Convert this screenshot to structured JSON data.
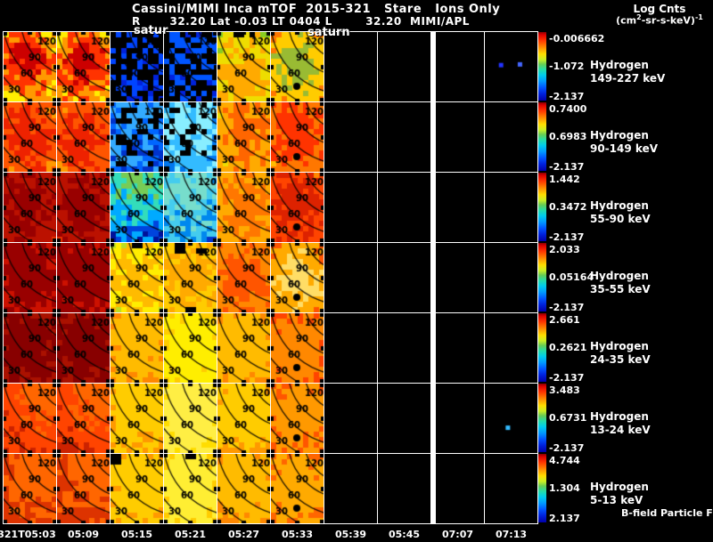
{
  "header": {
    "title": "Cassini/MIMI Inca mTOF  2015-321   Stare   Ions Only",
    "subtitle": "R       32.20 Lat -0.03 LT 0404 L        32.20  MIMI/APL",
    "colorbar_title": "Log Cnts",
    "unit_open": "(cm",
    "unit_sup1": "2",
    "unit_mid": "-sr-s-keV)",
    "unit_sup2": "-1"
  },
  "annotations": {
    "sat_partial": "satur",
    "saturn": "saturn",
    "bfield": "B-field Particle Flow"
  },
  "chart_data": {
    "type": "heatmap",
    "title": "Cassini/MIMI Inca mTOF 2015-321 Stare Ions Only",
    "colorbar_label": "Log Cnts (cm2-sr-s-keV)-1",
    "x_ticks": [
      "321T05:03",
      "05:09",
      "05:15",
      "05:21",
      "05:27",
      "05:33",
      "05:39",
      "05:45",
      "07:07",
      "07:13"
    ],
    "contour_labels": [
      "30",
      "60",
      "90",
      "120"
    ],
    "legend_position": "right",
    "rows": [
      {
        "species": "Hydrogen",
        "energy": "149-227 keV",
        "cb_top": "-0.006662",
        "cb_mid": "-1.072",
        "cb_bot": "-2.137"
      },
      {
        "species": "Hydrogen",
        "energy": "90-149 keV",
        "cb_top": "0.7400",
        "cb_mid": "0.6983",
        "cb_bot": "-2.137"
      },
      {
        "species": "Hydrogen",
        "energy": "55-90 keV",
        "cb_top": "1.442",
        "cb_mid": "0.3472",
        "cb_bot": "-2.137"
      },
      {
        "species": "Hydrogen",
        "energy": "35-55 keV",
        "cb_top": "2.033",
        "cb_mid": "0.05164",
        "cb_bot": "-2.137"
      },
      {
        "species": "Hydrogen",
        "energy": "24-35 keV",
        "cb_top": "2.661",
        "cb_mid": "0.2621",
        "cb_bot": "-2.137"
      },
      {
        "species": "Hydrogen",
        "energy": "13-24 keV",
        "cb_top": "3.483",
        "cb_mid": "0.6731",
        "cb_bot": "-2.137"
      },
      {
        "species": "Hydrogen",
        "energy": "5-13 keV",
        "cb_top": "4.744",
        "cb_mid": "1.304",
        "cb_bot": "2.137"
      }
    ],
    "panels": [
      [
        {
          "g": [
            "#33aa44",
            "#aacc22",
            "#ffee00",
            "#ff9900",
            "#ff3300",
            "#cc0000"
          ],
          "cx": 0.45,
          "cy": 0.42,
          "r": 1.3,
          "j": 0.3
        },
        {
          "g": [
            "#33aa44",
            "#aacc22",
            "#ffee00",
            "#ff9900",
            "#ff3300",
            "#cc0000"
          ],
          "cx": 0.5,
          "cy": 0.45,
          "r": 1.35,
          "j": 0.3
        },
        {
          "g": [
            "#000099",
            "#0022dd",
            "#0044ff"
          ],
          "cx": 0.5,
          "cy": 0.4,
          "r": 3,
          "j": 0.9,
          "s": 0.55
        },
        {
          "g": [
            "#000099",
            "#0022dd",
            "#0055ff"
          ],
          "cx": 0.5,
          "cy": 0.4,
          "r": 3,
          "j": 0.9,
          "s": 0.6
        },
        {
          "g": [
            "#22aa55",
            "#88cc22",
            "#eedd00",
            "#ffaa00"
          ],
          "cx": 0.5,
          "cy": 0.65,
          "r": 1.6,
          "j": 0.4,
          "drop": [
            [
              3,
              0,
              2,
              1
            ],
            [
              6,
              0,
              1,
              1
            ]
          ]
        },
        {
          "g": [
            "#cc2200",
            "#ff7700",
            "#ffcc00",
            "#99bb33"
          ],
          "cx": 0.5,
          "cy": 0.5,
          "r": 1.25,
          "j": 0.3,
          "dot": 1
        },
        {},
        {},
        {},
        {
          "sp": [
            [
              0.3,
              0.47,
              "#2233ff"
            ],
            [
              0.66,
              0.46,
              "#4466ff"
            ]
          ]
        }
      ],
      [
        {
          "g": [
            "#ffcc00",
            "#ff9900",
            "#ff5500",
            "#ee2200"
          ],
          "cx": 0.42,
          "cy": 0.5,
          "r": 1.5,
          "j": 0.35
        },
        {
          "g": [
            "#ffcc00",
            "#ff9900",
            "#ff5500",
            "#ee2200"
          ],
          "cx": 0.5,
          "cy": 0.5,
          "r": 1.4,
          "j": 0.35
        },
        {
          "g": [
            "#000088",
            "#0033cc",
            "#0066ff",
            "#33aaff"
          ],
          "cx": 0.5,
          "cy": 0.2,
          "r": 2.2,
          "j": 0.8,
          "s": 0.3
        },
        {
          "g": [
            "#0033bb",
            "#0077ee",
            "#33bbff",
            "#88eeff"
          ],
          "cx": 0.5,
          "cy": 0.3,
          "r": 1.8,
          "j": 0.6,
          "s": 0.15
        },
        {
          "g": [
            "#88bb33",
            "#eedd00",
            "#ffaa00",
            "#ff6600"
          ],
          "cx": 0.55,
          "cy": 0.45,
          "r": 1.6,
          "j": 0.35
        },
        {
          "g": [
            "#ffee00",
            "#ffbb00",
            "#ff7700",
            "#ff3300"
          ],
          "cx": 0.5,
          "cy": 0.45,
          "r": 1.7,
          "j": 0.3,
          "dot": 1
        },
        {},
        {},
        {},
        {}
      ],
      [
        {
          "g": [
            "#ff6600",
            "#ee3300",
            "#bb1100",
            "#990000"
          ],
          "cx": 0.45,
          "cy": 0.45,
          "r": 1.6,
          "j": 0.3
        },
        {
          "g": [
            "#ff6600",
            "#ee3300",
            "#bb1100",
            "#990000"
          ],
          "cx": 0.5,
          "cy": 0.5,
          "r": 1.6,
          "j": 0.3
        },
        {
          "g": [
            "#001199",
            "#0044dd",
            "#00aaff",
            "#33ddbb",
            "#77cc55"
          ],
          "cx": 0.5,
          "cy": 0.05,
          "r": 1.35,
          "j": 0.4
        },
        {
          "g": [
            "#0033cc",
            "#0088ee",
            "#44ccee",
            "#77ddcc"
          ],
          "cx": 0.5,
          "cy": 0.15,
          "r": 1.6,
          "j": 0.5
        },
        {
          "g": [
            "#aacc22",
            "#eedd00",
            "#ffaa00",
            "#ff7700"
          ],
          "cx": 0.55,
          "cy": 0.5,
          "r": 1.7,
          "j": 0.3
        },
        {
          "g": [
            "#ffcc00",
            "#ff8800",
            "#ff4400",
            "#dd2200"
          ],
          "cx": 0.5,
          "cy": 0.5,
          "r": 1.6,
          "j": 0.3,
          "dot": 1
        },
        {},
        {},
        {},
        {}
      ],
      [
        {
          "g": [
            "#ee4400",
            "#cc1100",
            "#990000"
          ],
          "cx": 0.45,
          "cy": 0.5,
          "r": 1.8,
          "j": 0.35
        },
        {
          "g": [
            "#ee4400",
            "#cc1100",
            "#990000"
          ],
          "cx": 0.5,
          "cy": 0.5,
          "r": 1.8,
          "j": 0.35
        },
        {
          "g": [
            "#55aa33",
            "#bbdd22",
            "#ffee00",
            "#ffbb00"
          ],
          "cx": 0.5,
          "cy": 0.55,
          "r": 1.7,
          "j": 0.4,
          "drop": [
            [
              4,
              0,
              2,
              1
            ]
          ]
        },
        {
          "g": [
            "#88bb22",
            "#eedd00",
            "#ffcc00",
            "#ffaa00"
          ],
          "cx": 0.5,
          "cy": 0.5,
          "r": 1.8,
          "j": 0.35,
          "drop": [
            [
              2,
              0,
              2,
              2
            ],
            [
              6,
              1,
              2,
              1
            ],
            [
              4,
              12,
              2,
              1
            ]
          ]
        },
        {
          "g": [
            "#eedd00",
            "#ffbb00",
            "#ff8800",
            "#ff5500"
          ],
          "cx": 0.5,
          "cy": 0.5,
          "r": 1.7,
          "j": 0.3
        },
        {
          "g": [
            "#bb1100",
            "#ff5500",
            "#ffaa00",
            "#ffdd66"
          ],
          "cx": 0.5,
          "cy": 0.55,
          "r": 1.3,
          "j": 0.3,
          "dot": 1
        },
        {},
        {},
        {},
        {}
      ],
      [
        {
          "g": [
            "#cc2200",
            "#aa1100",
            "#880000"
          ],
          "cx": 0.45,
          "cy": 0.5,
          "r": 2,
          "j": 0.4
        },
        {
          "g": [
            "#cc2200",
            "#aa1100",
            "#880000"
          ],
          "cx": 0.5,
          "cy": 0.5,
          "r": 2,
          "j": 0.4
        },
        {
          "g": [
            "#ff5500",
            "#ff8800",
            "#ffbb00"
          ],
          "cx": 0.5,
          "cy": 0.45,
          "r": 2,
          "j": 0.35
        },
        {
          "g": [
            "#ff9900",
            "#ffcc00",
            "#ffee00"
          ],
          "cx": 0.5,
          "cy": 0.5,
          "r": 2,
          "j": 0.3
        },
        {
          "g": [
            "#ff5500",
            "#ff8800",
            "#ffbb00"
          ],
          "cx": 0.5,
          "cy": 0.5,
          "r": 2,
          "j": 0.3
        },
        {
          "g": [
            "#dd1100",
            "#ff4400",
            "#ff8800"
          ],
          "cx": 0.5,
          "cy": 0.5,
          "r": 1.8,
          "j": 0.3,
          "dot": 1
        },
        {},
        {},
        {},
        {}
      ],
      [
        {
          "g": [
            "#991100",
            "#cc2200",
            "#ff4400",
            "#ff6600"
          ],
          "cx": 0.8,
          "cy": 0.1,
          "r": 1.9,
          "j": 0.25
        },
        {
          "g": [
            "#991100",
            "#cc2200",
            "#ff4400",
            "#ff6600"
          ],
          "cx": 0.8,
          "cy": 0.1,
          "r": 1.9,
          "j": 0.25
        },
        {
          "g": [
            "#ff6600",
            "#ff9900",
            "#ffcc00"
          ],
          "cx": 0.6,
          "cy": 0.3,
          "r": 2,
          "j": 0.3
        },
        {
          "g": [
            "#ffaa00",
            "#ffdd00",
            "#ffee44"
          ],
          "cx": 0.5,
          "cy": 0.4,
          "r": 2,
          "j": 0.25
        },
        {
          "g": [
            "#ff5500",
            "#ff9900",
            "#ffcc00"
          ],
          "cx": 0.5,
          "cy": 0.4,
          "r": 2,
          "j": 0.3
        },
        {
          "g": [
            "#cc1100",
            "#ff5500",
            "#ff9900"
          ],
          "cx": 0.5,
          "cy": 0.45,
          "r": 1.7,
          "j": 0.3,
          "dot": 1
        },
        {},
        {},
        {},
        {
          "sp": [
            [
              0.43,
              0.63,
              "#33bbff"
            ]
          ]
        }
      ],
      [
        {
          "g": [
            "#aa1100",
            "#dd3300",
            "#ff6600"
          ],
          "cx": 0.7,
          "cy": 0.2,
          "r": 1.9,
          "j": 0.3
        },
        {
          "g": [
            "#aa1100",
            "#dd3300",
            "#ff6600"
          ],
          "cx": 0.7,
          "cy": 0.2,
          "r": 1.9,
          "j": 0.3
        },
        {
          "g": [
            "#ff7700",
            "#ff9900",
            "#ffcc00"
          ],
          "cx": 0.55,
          "cy": 0.4,
          "r": 2,
          "j": 0.3,
          "drop": [
            [
              0,
              0,
              2,
              2
            ]
          ]
        },
        {
          "g": [
            "#ffaa00",
            "#ffcc00",
            "#ffee33"
          ],
          "cx": 0.5,
          "cy": 0.45,
          "r": 2,
          "j": 0.25,
          "drop": [
            [
              4,
              0,
              2,
              1
            ]
          ]
        },
        {
          "g": [
            "#ff5500",
            "#ff8800",
            "#ffbb00"
          ],
          "cx": 0.5,
          "cy": 0.4,
          "r": 2,
          "j": 0.3
        },
        {
          "g": [
            "#dd2200",
            "#ff6600",
            "#ffaa00"
          ],
          "cx": 0.5,
          "cy": 0.5,
          "r": 1.7,
          "j": 0.3,
          "dot": 1
        },
        {},
        {},
        {},
        {}
      ]
    ]
  }
}
